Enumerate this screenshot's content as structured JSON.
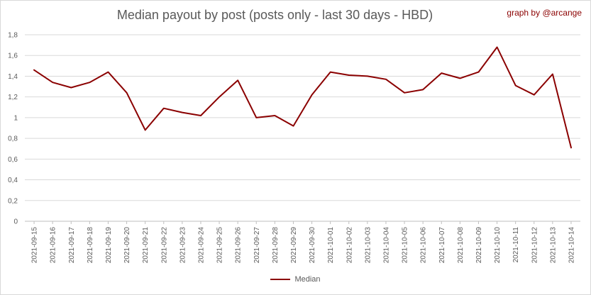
{
  "chart_data": {
    "type": "line",
    "title": "Median payout by post (posts only - last 30 days - HBD)",
    "credit": "graph by @arcange",
    "xlabel": "",
    "ylabel": "",
    "ylim": [
      0,
      1.8
    ],
    "y_ticks": [
      "0",
      "0,2",
      "0,4",
      "0,6",
      "0,8",
      "1",
      "1,2",
      "1,4",
      "1,6",
      "1,8"
    ],
    "grid": "horizontal",
    "legend_position": "bottom",
    "x": [
      "2021-09-15",
      "2021-09-16",
      "2021-09-17",
      "2021-09-18",
      "2021-09-19",
      "2021-09-20",
      "2021-09-21",
      "2021-09-22",
      "2021-09-23",
      "2021-09-24",
      "2021-09-25",
      "2021-09-26",
      "2021-09-27",
      "2021-09-28",
      "2021-09-29",
      "2021-09-30",
      "2021-10-01",
      "2021-10-02",
      "2021-10-03",
      "2021-10-04",
      "2021-10-05",
      "2021-10-06",
      "2021-10-07",
      "2021-10-08",
      "2021-10-09",
      "2021-10-10",
      "2021-10-11",
      "2021-10-12",
      "2021-10-13",
      "2021-10-14"
    ],
    "series": [
      {
        "name": "Median",
        "color": "#8b0000",
        "values": [
          1.46,
          1.34,
          1.29,
          1.34,
          1.44,
          1.24,
          0.88,
          1.09,
          1.05,
          1.02,
          1.2,
          1.36,
          1.0,
          1.02,
          0.92,
          1.22,
          1.44,
          1.41,
          1.4,
          1.37,
          1.24,
          1.27,
          1.43,
          1.38,
          1.44,
          1.68,
          1.31,
          1.22,
          1.42,
          0.71
        ]
      }
    ]
  }
}
